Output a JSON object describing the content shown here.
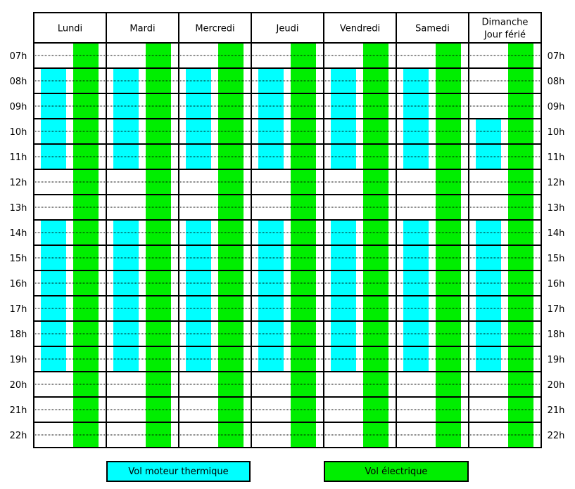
{
  "chart_data": {
    "type": "table",
    "days": [
      "Lundi",
      "Mardi",
      "Mercredi",
      "Jeudi",
      "Vendredi",
      "Samedi",
      "Dimanche\nJour férié"
    ],
    "hours": [
      "07h",
      "08h",
      "09h",
      "10h",
      "11h",
      "12h",
      "13h",
      "14h",
      "15h",
      "16h",
      "17h",
      "18h",
      "19h",
      "20h",
      "21h",
      "22h"
    ],
    "series": [
      {
        "name": "Vol moteur thermique",
        "color": "#00ffff",
        "slots": [
          [
            [
              8,
              12
            ],
            [
              14,
              20
            ]
          ],
          [
            [
              8,
              12
            ],
            [
              14,
              20
            ]
          ],
          [
            [
              8,
              12
            ],
            [
              14,
              20
            ]
          ],
          [
            [
              8,
              12
            ],
            [
              14,
              20
            ]
          ],
          [
            [
              8,
              12
            ],
            [
              14,
              20
            ]
          ],
          [
            [
              8,
              12
            ],
            [
              14,
              20
            ]
          ],
          [
            [
              10,
              12
            ],
            [
              14,
              20
            ]
          ]
        ]
      },
      {
        "name": "Vol électrique",
        "color": "#00ee00",
        "slots": [
          [
            [
              7,
              23
            ]
          ],
          [
            [
              7,
              23
            ]
          ],
          [
            [
              7,
              23
            ]
          ],
          [
            [
              7,
              23
            ]
          ],
          [
            [
              7,
              23
            ]
          ],
          [
            [
              7,
              23
            ]
          ],
          [
            [
              7,
              23
            ]
          ]
        ]
      }
    ]
  },
  "legend": {
    "thermal_label": "Vol moteur thermique",
    "electric_label": "Vol électrique"
  }
}
